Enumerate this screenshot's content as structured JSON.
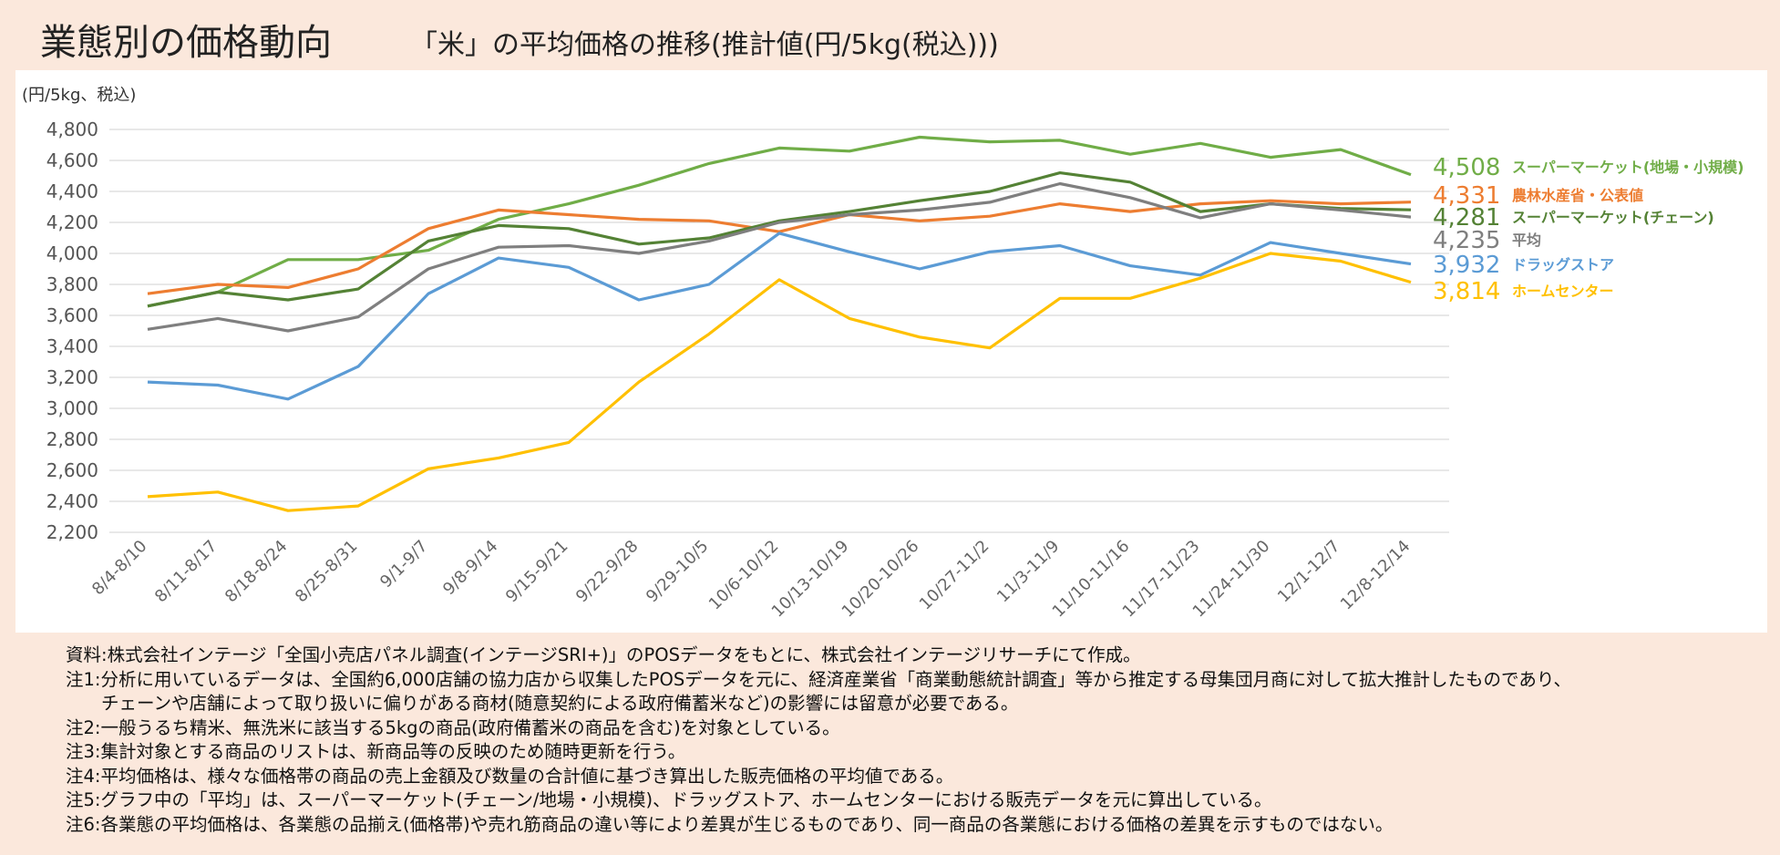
{
  "chart_data": {
    "type": "line",
    "title": "業態別の価格動向",
    "subtitle": "「米」の平均価格の推移(推計値(円/5kg(税込)))",
    "y_label": "(円/5kg、税込)",
    "categories": [
      "8/4-8/10",
      "8/11-8/17",
      "8/18-8/24",
      "8/25-8/31",
      "9/1-9/7",
      "9/8-9/14",
      "9/15-9/21",
      "9/22-9/28",
      "9/29-10/5",
      "10/6-10/12",
      "10/13-10/19",
      "10/20-10/26",
      "10/27-11/2",
      "11/3-11/9",
      "11/10-11/16",
      "11/17-11/23",
      "11/24-11/30",
      "12/1-12/7",
      "12/8-12/14"
    ],
    "ylim": [
      2200,
      4800
    ],
    "yticks": [
      {
        "value": 2200,
        "label": "2,200"
      },
      {
        "value": 2400,
        "label": "2,400"
      },
      {
        "value": 2600,
        "label": "2,600"
      },
      {
        "value": 2800,
        "label": "2,800"
      },
      {
        "value": 3000,
        "label": "3,000"
      },
      {
        "value": 3200,
        "label": "3,200"
      },
      {
        "value": 3400,
        "label": "3,400"
      },
      {
        "value": 3600,
        "label": "3,600"
      },
      {
        "value": 3800,
        "label": "3,800"
      },
      {
        "value": 4000,
        "label": "4,000"
      },
      {
        "value": 4200,
        "label": "4,200"
      },
      {
        "value": 4400,
        "label": "4,400"
      },
      {
        "value": 4600,
        "label": "4,600"
      },
      {
        "value": 4800,
        "label": "4,800"
      }
    ],
    "grid": true,
    "series": [
      {
        "name": "スーパーマーケット(地場・小規模)",
        "color": "#70ad47",
        "values": [
          3660,
          3750,
          3960,
          3960,
          4020,
          4220,
          4320,
          4440,
          4580,
          4680,
          4660,
          4750,
          4720,
          4730,
          4640,
          4710,
          4620,
          4670,
          4508
        ],
        "value_labels": [
          null,
          null,
          null,
          null,
          null,
          null,
          null,
          null,
          null,
          null,
          null,
          null,
          null,
          null,
          null,
          null,
          null,
          null,
          "4,508"
        ]
      },
      {
        "name": "農林水産省・公表値",
        "color": "#ed7d31",
        "values": [
          3740,
          3800,
          3780,
          3900,
          4160,
          4280,
          4250,
          4220,
          4210,
          4140,
          4250,
          4210,
          4240,
          4320,
          4270,
          4320,
          4340,
          4320,
          4331
        ],
        "value_labels": [
          null,
          null,
          null,
          null,
          null,
          null,
          null,
          null,
          null,
          null,
          null,
          null,
          null,
          null,
          null,
          null,
          null,
          null,
          "4,331"
        ]
      },
      {
        "name": "スーパーマーケット(チェーン)",
        "color": "#548235",
        "values": [
          3660,
          3750,
          3700,
          3770,
          4080,
          4180,
          4160,
          4060,
          4100,
          4210,
          4270,
          4340,
          4400,
          4520,
          4460,
          4270,
          4320,
          4290,
          4281
        ],
        "value_labels": [
          null,
          null,
          null,
          null,
          null,
          null,
          null,
          null,
          null,
          null,
          null,
          null,
          null,
          null,
          null,
          null,
          null,
          null,
          "4,281"
        ]
      },
      {
        "name": "平均",
        "color": "#7f7f7f",
        "values": [
          3510,
          3580,
          3500,
          3590,
          3900,
          4040,
          4050,
          4000,
          4080,
          4200,
          4250,
          4280,
          4330,
          4450,
          4360,
          4230,
          4320,
          4280,
          4235
        ],
        "value_labels": [
          null,
          null,
          null,
          null,
          null,
          null,
          null,
          null,
          null,
          null,
          null,
          null,
          null,
          null,
          null,
          null,
          null,
          null,
          "4,235"
        ]
      },
      {
        "name": "ドラッグストア",
        "color": "#5b9bd5",
        "values": [
          3170,
          3150,
          3060,
          3270,
          3740,
          3970,
          3910,
          3700,
          3800,
          4130,
          4010,
          3900,
          4010,
          4050,
          3920,
          3860,
          4070,
          4000,
          3932
        ],
        "value_labels": [
          null,
          null,
          null,
          null,
          null,
          null,
          null,
          null,
          null,
          null,
          null,
          null,
          null,
          null,
          null,
          null,
          null,
          null,
          "3,932"
        ]
      },
      {
        "name": "ホームセンター",
        "color": "#ffc000",
        "values": [
          2430,
          2460,
          2340,
          2370,
          2610,
          2680,
          2780,
          3170,
          3480,
          3830,
          3580,
          3460,
          3390,
          3710,
          3710,
          3840,
          4000,
          3950,
          3814
        ],
        "value_labels": [
          null,
          null,
          null,
          null,
          null,
          null,
          null,
          null,
          null,
          null,
          null,
          null,
          null,
          null,
          null,
          null,
          null,
          null,
          "3,814"
        ]
      }
    ]
  },
  "notes": [
    "資料:株式会社インテージ「全国小売店パネル調査(インテージSRI+)」のPOSデータをもとに、株式会社インテージリサーチにて作成。",
    "注1:分析に用いているデータは、全国約6,000店舗の協力店から収集したPOSデータを元に、経済産業省「商業動態統計調査」等から推定する母集団月商に対して拡大推計したものであり、",
    "　　チェーンや店舗によって取り扱いに偏りがある商材(随意契約による政府備蓄米など)の影響には留意が必要である。",
    "注2:一般うるち精米、無洗米に該当する5kgの商品(政府備蓄米の商品を含む)を対象としている。",
    "注3:集計対象とする商品のリストは、新商品等の反映のため随時更新を行う。",
    "注4:平均価格は、様々な価格帯の商品の売上金額及び数量の合計値に基づき算出した販売価格の平均値である。",
    "注5:グラフ中の「平均」は、スーパーマーケット(チェーン/地場・小規模)、ドラッグストア、ホームセンターにおける販売データを元に算出している。",
    "注6:各業態の平均価格は、各業態の品揃え(価格帯)や売れ筋商品の違い等により差異が生じるものであり、同一商品の各業態における価格の差異を示すものではない。"
  ]
}
